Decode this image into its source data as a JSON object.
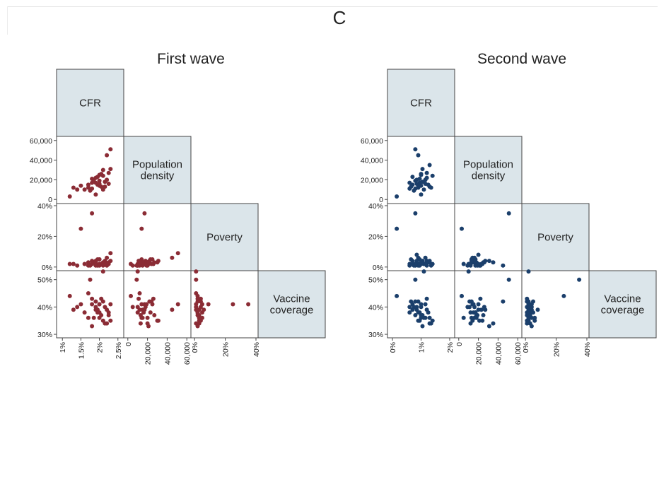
{
  "page": {
    "panel_letter": "C"
  },
  "colors": {
    "first_wave": "#8b2c35",
    "second_wave": "#1b3f6b",
    "diag_fill": "#dbe5ea"
  },
  "chart_data": [
    {
      "type": "scatter",
      "subtype": "scatterplot-matrix",
      "title": "First wave",
      "variables": [
        "CFR",
        "Population density",
        "Poverty",
        "Vaccine coverage"
      ],
      "axes": {
        "CFR": {
          "range": [
            0.9,
            2.6
          ],
          "x_ticks": [
            1,
            1.5,
            2,
            2.5
          ],
          "x_tick_labels": [
            "1%",
            "1.5%",
            "2%",
            "2.5%"
          ]
        },
        "Population density": {
          "range": [
            -2000,
            62000
          ],
          "y_ticks": [
            0,
            20000,
            40000,
            60000
          ],
          "y_tick_labels": [
            "0",
            "20,000",
            "40,000",
            "60,000"
          ],
          "x_ticks": [
            0,
            20000,
            40000,
            60000
          ],
          "x_tick_labels": [
            "0",
            "20,000",
            "40,000",
            "60,000"
          ]
        },
        "Poverty": {
          "range": [
            -1,
            40
          ],
          "y_ticks": [
            0,
            20,
            40
          ],
          "y_tick_labels": [
            "0%",
            "20%",
            "40%"
          ],
          "x_ticks": [
            0,
            20,
            40
          ],
          "x_tick_labels": [
            "0%",
            "20%",
            "40%"
          ]
        },
        "Vaccine coverage": {
          "range": [
            29.5,
            52.5
          ],
          "y_ticks": [
            30,
            40,
            50
          ],
          "y_tick_labels": [
            "30%",
            "40%",
            "50%"
          ]
        }
      },
      "points": [
        [
          1.2,
          3000,
          2,
          44
        ],
        [
          1.4,
          10000,
          1,
          40
        ],
        [
          1.5,
          14000,
          25,
          41
        ],
        [
          1.6,
          10000,
          2,
          38
        ],
        [
          1.7,
          12000,
          1,
          45
        ],
        [
          1.8,
          17000,
          35,
          41
        ],
        [
          1.85,
          20000,
          3,
          36
        ],
        [
          1.9,
          22000,
          4,
          42
        ],
        [
          1.95,
          15000,
          1,
          39
        ],
        [
          2.0,
          25000,
          5,
          41
        ],
        [
          2.05,
          13000,
          2,
          37
        ],
        [
          2.1,
          30000,
          3,
          35
        ],
        [
          2.15,
          18000,
          4,
          40
        ],
        [
          2.2,
          20000,
          1,
          34
        ],
        [
          2.25,
          16000,
          2,
          38
        ],
        [
          1.75,
          9000,
          1,
          50
        ],
        [
          1.8,
          11000,
          4,
          43
        ],
        [
          1.9,
          17000,
          3,
          39
        ],
        [
          2.0,
          14000,
          5,
          36
        ],
        [
          2.1,
          24000,
          2,
          42
        ],
        [
          2.2,
          45000,
          6,
          39
        ],
        [
          2.3,
          51000,
          9,
          41
        ],
        [
          2.25,
          27000,
          3,
          37
        ],
        [
          2.3,
          31000,
          4,
          35
        ],
        [
          1.9,
          5000,
          1,
          40
        ],
        [
          2.0,
          16000,
          2,
          38
        ],
        [
          1.7,
          15000,
          3,
          36
        ],
        [
          2.1,
          10000,
          1,
          53
        ],
        [
          1.8,
          21000,
          2,
          33
        ],
        [
          2.0,
          19000,
          1,
          41
        ],
        [
          1.3,
          12000,
          2,
          39
        ],
        [
          2.15,
          13000,
          3,
          34
        ],
        [
          1.95,
          23000,
          5,
          38
        ],
        [
          2.05,
          26000,
          2,
          43
        ]
      ]
    },
    {
      "type": "scatter",
      "subtype": "scatterplot-matrix",
      "title": "Second wave",
      "variables": [
        "CFR",
        "Population density",
        "Poverty",
        "Vaccine coverage"
      ],
      "axes": {
        "CFR": {
          "range": [
            -0.1,
            2.1
          ],
          "x_ticks": [
            0,
            1,
            2
          ],
          "x_tick_labels": [
            "0%",
            "1%",
            "2%"
          ]
        },
        "Population density": {
          "range": [
            -2000,
            62000
          ],
          "y_ticks": [
            0,
            20000,
            40000,
            60000
          ],
          "y_tick_labels": [
            "0",
            "20,000",
            "40,000",
            "60,000"
          ],
          "x_ticks": [
            0,
            20000,
            40000,
            60000
          ],
          "x_tick_labels": [
            "0",
            "20,000",
            "40,000",
            "60,000"
          ]
        },
        "Poverty": {
          "range": [
            -1,
            40
          ],
          "y_ticks": [
            0,
            20,
            40
          ],
          "y_tick_labels": [
            "0%",
            "20%",
            "40%"
          ],
          "x_ticks": [
            0,
            20,
            40
          ],
          "x_tick_labels": [
            "0%",
            "20%",
            "40%"
          ]
        },
        "Vaccine coverage": {
          "range": [
            29.5,
            52.5
          ],
          "y_ticks": [
            30,
            40,
            50
          ],
          "y_tick_labels": [
            "30%",
            "40%",
            "50%"
          ]
        }
      },
      "points": [
        [
          0.15,
          3000,
          25,
          44
        ],
        [
          0.6,
          11000,
          2,
          40
        ],
        [
          0.8,
          51000,
          35,
          50
        ],
        [
          0.9,
          45000,
          1,
          42
        ],
        [
          1.0,
          25000,
          3,
          37
        ],
        [
          0.7,
          15000,
          4,
          41
        ],
        [
          0.85,
          20000,
          8,
          39
        ],
        [
          1.1,
          18000,
          2,
          36
        ],
        [
          1.2,
          22000,
          1,
          43
        ],
        [
          0.95,
          17000,
          5,
          38
        ],
        [
          1.3,
          35000,
          3,
          34
        ],
        [
          1.4,
          24000,
          2,
          35
        ],
        [
          1.05,
          31000,
          4,
          33
        ],
        [
          0.75,
          9000,
          1,
          40
        ],
        [
          0.9,
          12000,
          2,
          38
        ],
        [
          1.15,
          16000,
          6,
          36
        ],
        [
          1.0,
          14000,
          3,
          41
        ],
        [
          0.8,
          19000,
          1,
          37
        ],
        [
          1.2,
          27000,
          4,
          39
        ],
        [
          1.1,
          10000,
          2,
          53
        ],
        [
          0.65,
          13000,
          5,
          42
        ],
        [
          0.95,
          21000,
          1,
          35
        ],
        [
          1.25,
          15000,
          3,
          38
        ],
        [
          1.0,
          5000,
          2,
          36
        ],
        [
          0.85,
          16000,
          4,
          40
        ],
        [
          1.35,
          12000,
          1,
          34
        ],
        [
          0.7,
          23000,
          2,
          39
        ],
        [
          1.05,
          18000,
          3,
          37
        ],
        [
          0.9,
          14000,
          6,
          35
        ],
        [
          1.15,
          20000,
          2,
          41
        ],
        [
          0.6,
          17000,
          1,
          38
        ],
        [
          1.3,
          13000,
          4,
          36
        ],
        [
          0.8,
          11000,
          2,
          42
        ],
        [
          1.0,
          26000,
          3,
          40
        ]
      ]
    }
  ]
}
